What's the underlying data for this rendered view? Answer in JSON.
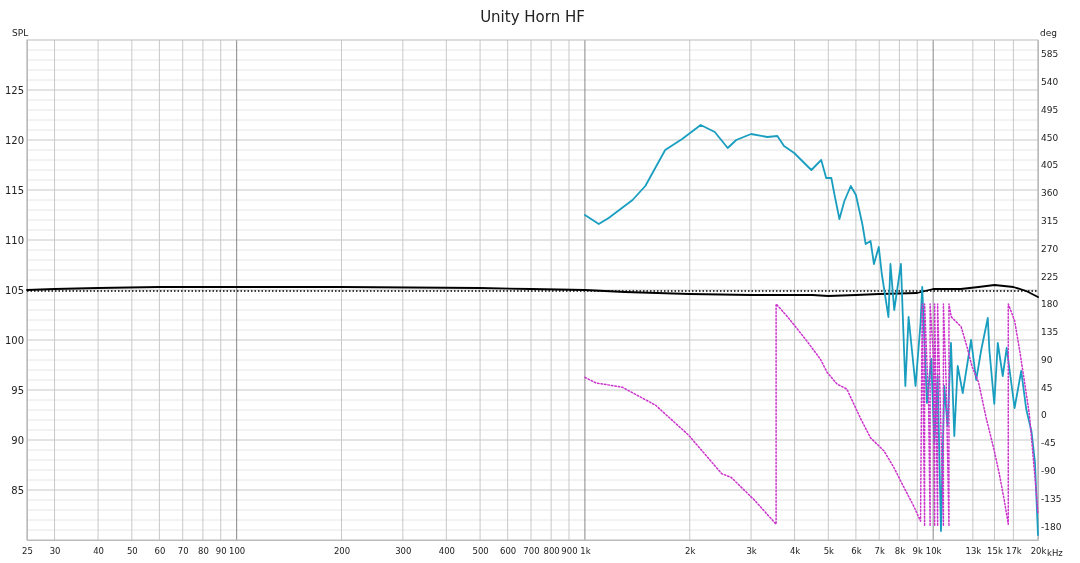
{
  "chart_data": {
    "type": "line",
    "title": "Unity Horn HF",
    "ylabel": "SPL",
    "y2label": "deg",
    "log": "x",
    "xlabel": "kHz",
    "grid": true,
    "line_style": "solid",
    "marker": "none",
    "xlim": [
      25,
      20000
    ],
    "xticks": [
      25,
      30,
      40,
      50,
      60,
      70,
      80,
      90,
      100,
      200,
      300,
      400,
      500,
      600,
      700,
      800,
      900,
      {
        "value": 1000,
        "label": "1k"
      },
      {
        "value": 2000,
        "label": "2k"
      },
      {
        "value": 3000,
        "label": "3k"
      },
      {
        "value": 4000,
        "label": "4k"
      },
      {
        "value": 5000,
        "label": "5k"
      },
      {
        "value": 6000,
        "label": "6k"
      },
      {
        "value": 7000,
        "label": "7k"
      },
      {
        "value": 8000,
        "label": "8k"
      },
      {
        "value": 9000,
        "label": "9k"
      },
      {
        "value": 10000,
        "label": "10k"
      },
      {
        "value": 13000,
        "label": "13k"
      },
      {
        "value": 15000,
        "label": "15k"
      },
      {
        "value": 17000,
        "label": "17k"
      },
      {
        "value": 20000,
        "label": "20k"
      }
    ],
    "ylim": [
      80,
      130
    ],
    "yticks": [
      {
        "value": 81,
        "label": null
      },
      {
        "value": 82,
        "label": null
      },
      {
        "value": 83,
        "label": null
      },
      {
        "value": 84,
        "label": null
      },
      85,
      {
        "value": 86,
        "label": null
      },
      {
        "value": 87,
        "label": null
      },
      {
        "value": 88,
        "label": null
      },
      {
        "value": 89,
        "label": null
      },
      90,
      {
        "value": 91,
        "label": null
      },
      {
        "value": 92,
        "label": null
      },
      {
        "value": 93,
        "label": null
      },
      {
        "value": 94,
        "label": null
      },
      95,
      {
        "value": 96,
        "label": null
      },
      {
        "value": 97,
        "label": null
      },
      {
        "value": 98,
        "label": null
      },
      {
        "value": 99,
        "label": null
      },
      100,
      {
        "value": 101,
        "label": null
      },
      {
        "value": 102,
        "label": null
      },
      {
        "value": 103,
        "label": null
      },
      {
        "value": 104,
        "label": null
      },
      105,
      {
        "value": 106,
        "label": null
      },
      {
        "value": 107,
        "label": null
      },
      {
        "value": 108,
        "label": null
      },
      {
        "value": 109,
        "label": null
      },
      110,
      {
        "value": 111,
        "label": null
      },
      {
        "value": 112,
        "label": null
      },
      {
        "value": 113,
        "label": null
      },
      {
        "value": 114,
        "label": null
      },
      115,
      {
        "value": 116,
        "label": null
      },
      {
        "value": 117,
        "label": null
      },
      {
        "value": 118,
        "label": null
      },
      {
        "value": 119,
        "label": null
      },
      120,
      {
        "value": 121,
        "label": null
      },
      {
        "value": 122,
        "label": null
      },
      {
        "value": 123,
        "label": null
      },
      {
        "value": 124,
        "label": null
      },
      125,
      {
        "value": 126,
        "label": null
      },
      {
        "value": 127,
        "label": null
      },
      {
        "value": 128,
        "label": null
      },
      {
        "value": 129,
        "label": null
      }
    ],
    "y2lim": [
      -202.5,
      607.5
    ],
    "y2ticks": [
      -180,
      -135,
      -90,
      -45,
      0,
      45,
      90,
      135,
      180,
      225,
      270,
      315,
      360,
      405,
      450,
      495,
      540,
      585
    ],
    "ref_lines": [
      {
        "axis": "y",
        "value": 104.9,
        "color": "#000000",
        "line_style": "dotted"
      }
    ],
    "series": [
      {
        "color": "#000000",
        "x": [
          25,
          30,
          40,
          60,
          100,
          200,
          500,
          700,
          1000,
          1300,
          2000,
          3000,
          4500,
          5000,
          6000,
          7000,
          9000,
          10000,
          12000,
          13500,
          15000,
          17000,
          18500,
          20000
        ],
        "values": [
          105,
          105.1,
          105.2,
          105.3,
          105.3,
          105.3,
          105.2,
          105.1,
          105,
          104.8,
          104.6,
          104.5,
          104.5,
          104.4,
          104.5,
          104.6,
          104.7,
          105.1,
          105.1,
          105.3,
          105.5,
          105.3,
          104.9,
          104.3
        ]
      },
      {
        "color": "#1a9ec0",
        "x": [
          1000,
          1096,
          1170,
          1370,
          1491,
          1700,
          1902,
          2150,
          2360,
          2570,
          2720,
          3000,
          3340,
          3570,
          3730,
          3990,
          4350,
          4470,
          4770,
          4930,
          5100,
          5210,
          5380,
          5560,
          5800,
          6000,
          6260,
          6400,
          6610,
          6760,
          6980,
          7120,
          7440,
          7540,
          7730,
          8080,
          8320,
          8500,
          8900,
          9200,
          9300,
          9600,
          9870,
          10080,
          10300,
          10530,
          10760,
          11000,
          11250,
          11500,
          11760,
          12160,
          12850,
          13290,
          13740,
          14350,
          14500,
          14980,
          15330,
          15840,
          16260,
          16560,
          17130,
          17900,
          18500,
          19170,
          19600,
          20000
        ],
        "values": [
          112.5,
          111.6,
          112.2,
          114,
          115.4,
          119,
          120.1,
          121.5,
          120.8,
          119.2,
          120,
          120.6,
          120.3,
          120.4,
          119.4,
          118.7,
          117.4,
          117,
          118,
          116.2,
          116.2,
          114.5,
          112.1,
          113.9,
          115.4,
          114.5,
          111.6,
          109.6,
          109.9,
          107.6,
          109.3,
          106.6,
          102.3,
          107.6,
          103,
          107.6,
          95.4,
          102.3,
          95.4,
          101.7,
          105.3,
          93.7,
          98.1,
          89.8,
          96.4,
          80.9,
          95.4,
          91.4,
          99.7,
          90.4,
          97.4,
          94.7,
          100,
          96,
          99,
          102.2,
          99,
          93.6,
          99.7,
          96.4,
          99.2,
          97.1,
          93.2,
          96.9,
          93.1,
          90.8,
          87.8,
          80.5
        ]
      },
      {
        "color": "#cc33cc",
        "axis": "y2",
        "line_style": "dotted",
        "x": [
          1000,
          1075,
          1280,
          1594,
          1980,
          2470,
          2630,
          3070,
          3540,
          3540,
          3820,
          4350,
          4750,
          4960,
          5300,
          5650,
          6180,
          6610,
          7220,
          7710,
          8220,
          8800,
          9200,
          9300,
          9450,
          9450,
          9700,
          9800,
          9800,
          10000,
          10100,
          10100,
          10300,
          10300,
          10500,
          10700,
          10700,
          10900,
          11100,
          11100,
          11270,
          12030,
          12500,
          12920,
          13500,
          14200,
          14980,
          15480,
          16000,
          16430,
          16430,
          17130,
          17700,
          18300,
          18900,
          19600,
          20000
        ],
        "values": [
          61,
          52,
          45,
          16,
          -32,
          -95,
          -101,
          -138,
          -177,
          180,
          159,
          119,
          90,
          69,
          50,
          42,
          -5,
          -37,
          -58,
          -85,
          -116,
          -148,
          -172,
          180,
          -180,
          180,
          20,
          -180,
          180,
          100,
          -180,
          180,
          -180,
          180,
          0,
          -180,
          180,
          50,
          -180,
          180,
          159,
          143,
          111,
          79,
          53,
          -5,
          -58,
          -95,
          -138,
          -177,
          180,
          153,
          106,
          53,
          0,
          -100,
          -160
        ]
      }
    ]
  }
}
